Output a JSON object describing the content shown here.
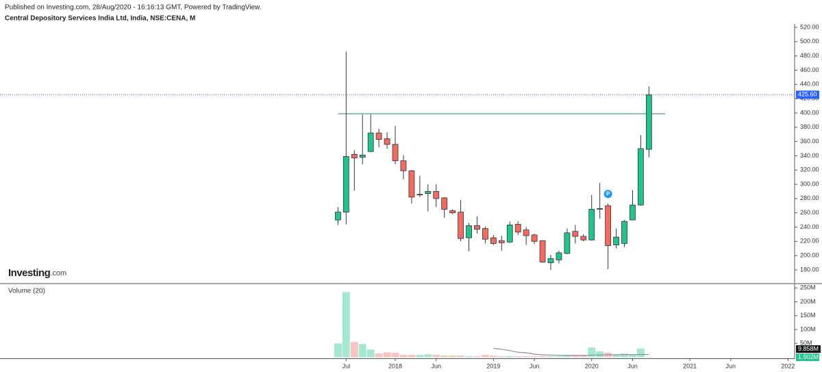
{
  "header": {
    "published": "Published on Investing.com, 28/Aug/2020 - 16:16:13 GMT, Powered by TradingView.",
    "symbol": "Central Depository Services India Ltd, India, NSE:CENA, M"
  },
  "logo": {
    "name": "Investing",
    "suffix": ".com"
  },
  "chart_data": [
    {
      "type": "candlestick",
      "x": [
        0,
        1,
        2,
        3,
        4,
        5,
        6,
        7,
        8,
        9,
        10,
        11,
        12,
        13,
        14,
        15,
        16,
        17,
        18,
        19,
        20,
        21,
        22,
        23,
        24,
        25,
        26,
        27,
        28,
        29,
        30,
        31,
        32,
        33,
        34,
        35,
        36,
        37,
        38
      ],
      "open": [
        250,
        261,
        342,
        338,
        346,
        372,
        364,
        356,
        333,
        319,
        285,
        287,
        290,
        281,
        263,
        261,
        225,
        242,
        238,
        225,
        221,
        219,
        244,
        236,
        229,
        221,
        190,
        194,
        203,
        234,
        227,
        222,
        265,
        270,
        215,
        217,
        250,
        271,
        349
      ],
      "high": [
        268,
        486,
        348,
        398,
        398,
        378,
        373,
        382,
        341,
        320,
        312,
        300,
        300,
        282,
        265,
        278,
        246,
        255,
        241,
        229,
        228,
        248,
        248,
        240,
        231,
        221,
        201,
        207,
        238,
        243,
        230,
        285,
        302,
        273,
        238,
        250,
        292,
        369,
        437
      ],
      "low": [
        243,
        244,
        291,
        328,
        345,
        352,
        350,
        328,
        307,
        273,
        282,
        262,
        268,
        253,
        258,
        220,
        206,
        231,
        217,
        215,
        207,
        218,
        229,
        215,
        216,
        190,
        180,
        189,
        202,
        217,
        220,
        221,
        252,
        181,
        210,
        212,
        250,
        270,
        338
      ],
      "close": [
        261,
        339,
        337,
        341,
        372,
        363,
        356,
        333,
        319,
        282,
        286,
        290,
        280,
        265,
        260,
        224,
        242,
        237,
        223,
        217,
        218,
        243,
        233,
        228,
        220,
        191,
        196,
        204,
        232,
        227,
        222,
        265,
        266,
        214,
        226,
        248,
        271,
        350,
        425.6
      ],
      "up_color": "#22c48c",
      "down_color": "#f26b62",
      "border_color": "#333333",
      "ylim": [
        161.7,
        524.8
      ],
      "yticks": [
        {
          "value": 180,
          "label": "180.00"
        },
        {
          "value": 200,
          "label": "200.00"
        },
        {
          "value": 220,
          "label": "220.00"
        },
        {
          "value": 240,
          "label": "240.00"
        },
        {
          "value": 260,
          "label": "260.00"
        },
        {
          "value": 280,
          "label": "280.00"
        },
        {
          "value": 300,
          "label": "300.00"
        },
        {
          "value": 320,
          "label": "320.00"
        },
        {
          "value": 340,
          "label": "340.00"
        },
        {
          "value": 360,
          "label": "360.00"
        },
        {
          "value": 380,
          "label": "380.00"
        },
        {
          "value": 400,
          "label": "400.00"
        },
        {
          "value": 420,
          "label": "420.00"
        },
        {
          "value": 440,
          "label": "440.00"
        },
        {
          "value": 460,
          "label": "460.00"
        },
        {
          "value": 480,
          "label": "480.00"
        },
        {
          "value": 500,
          "label": "500.00"
        },
        {
          "value": 520,
          "label": "520.00"
        }
      ],
      "xlim": [
        -41.3,
        55.8
      ],
      "xticks": [
        {
          "value": 1,
          "label": "Jul"
        },
        {
          "value": 7,
          "label": "2018"
        },
        {
          "value": 12,
          "label": "Jun"
        },
        {
          "value": 19,
          "label": "2019"
        },
        {
          "value": 24,
          "label": "Jun"
        },
        {
          "value": 31,
          "label": "2020"
        },
        {
          "value": 36,
          "label": "Jun"
        },
        {
          "value": 43,
          "label": "2021"
        },
        {
          "value": 48,
          "label": "Jun"
        },
        {
          "value": 55,
          "label": "2022"
        }
      ],
      "trendline": {
        "value": 399,
        "x": [
          0,
          40
        ],
        "color": "#1b8a5a"
      },
      "last_price": {
        "value": 425.6,
        "label": "425.60",
        "color": "#2962ff"
      },
      "events": [
        {
          "x": 33,
          "label": "P",
          "color": "#2196f3"
        }
      ],
      "grid": false
    },
    {
      "type": "volume",
      "title": "Volume (20)",
      "x": [
        0,
        1,
        2,
        3,
        4,
        5,
        6,
        7,
        8,
        9,
        10,
        11,
        12,
        13,
        14,
        15,
        16,
        17,
        18,
        19,
        20,
        21,
        22,
        23,
        24,
        25,
        26,
        27,
        28,
        29,
        30,
        31,
        32,
        33,
        34,
        35,
        36,
        37,
        38
      ],
      "values": [
        50,
        235,
        55,
        48,
        28,
        14,
        18,
        16,
        9,
        9,
        9,
        11,
        9,
        6,
        6,
        6,
        4,
        4,
        9,
        6,
        4,
        4,
        4,
        4,
        4,
        4,
        4,
        4,
        6,
        6,
        6,
        35,
        21,
        16,
        9,
        14,
        11,
        31,
        1.902
      ],
      "value_labels": [
        null,
        null,
        null,
        null,
        null,
        null,
        null,
        null,
        null,
        null,
        null,
        null,
        null,
        null,
        null,
        null,
        null,
        null,
        null,
        null,
        null,
        null,
        null,
        null,
        null,
        null,
        null,
        null,
        null,
        null,
        null,
        null,
        null,
        null,
        null,
        null,
        null,
        null,
        "1.902M"
      ],
      "up_color": "#a6e8cf",
      "down_color": "#f7c4c1",
      "label_color": "#22c48c",
      "ma": {
        "values": [
          null,
          null,
          null,
          null,
          null,
          null,
          null,
          null,
          null,
          null,
          null,
          null,
          null,
          null,
          null,
          null,
          null,
          null,
          null,
          32,
          29,
          24,
          18,
          16,
          11,
          9,
          8,
          7.5,
          7,
          7,
          7,
          8,
          8.5,
          9,
          9,
          9.5,
          9.5,
          10,
          9.858
        ],
        "value_labels": [
          null,
          null,
          null,
          null,
          null,
          null,
          null,
          null,
          null,
          null,
          null,
          null,
          null,
          null,
          null,
          null,
          null,
          null,
          null,
          null,
          null,
          null,
          null,
          null,
          null,
          null,
          null,
          null,
          null,
          null,
          null,
          null,
          null,
          null,
          null,
          null,
          null,
          null,
          "9.858M"
        ],
        "color": "#8a8f99",
        "label_color": "#111111"
      },
      "ylim": [
        0,
        255.6
      ],
      "yticks": [
        {
          "value": 50,
          "label": "50M"
        },
        {
          "value": 100,
          "label": "100M"
        },
        {
          "value": 150,
          "label": "150M"
        },
        {
          "value": 200,
          "label": "200M"
        },
        {
          "value": 250,
          "label": "250M"
        }
      ],
      "xlim": [
        -41.3,
        55.8
      ]
    }
  ]
}
